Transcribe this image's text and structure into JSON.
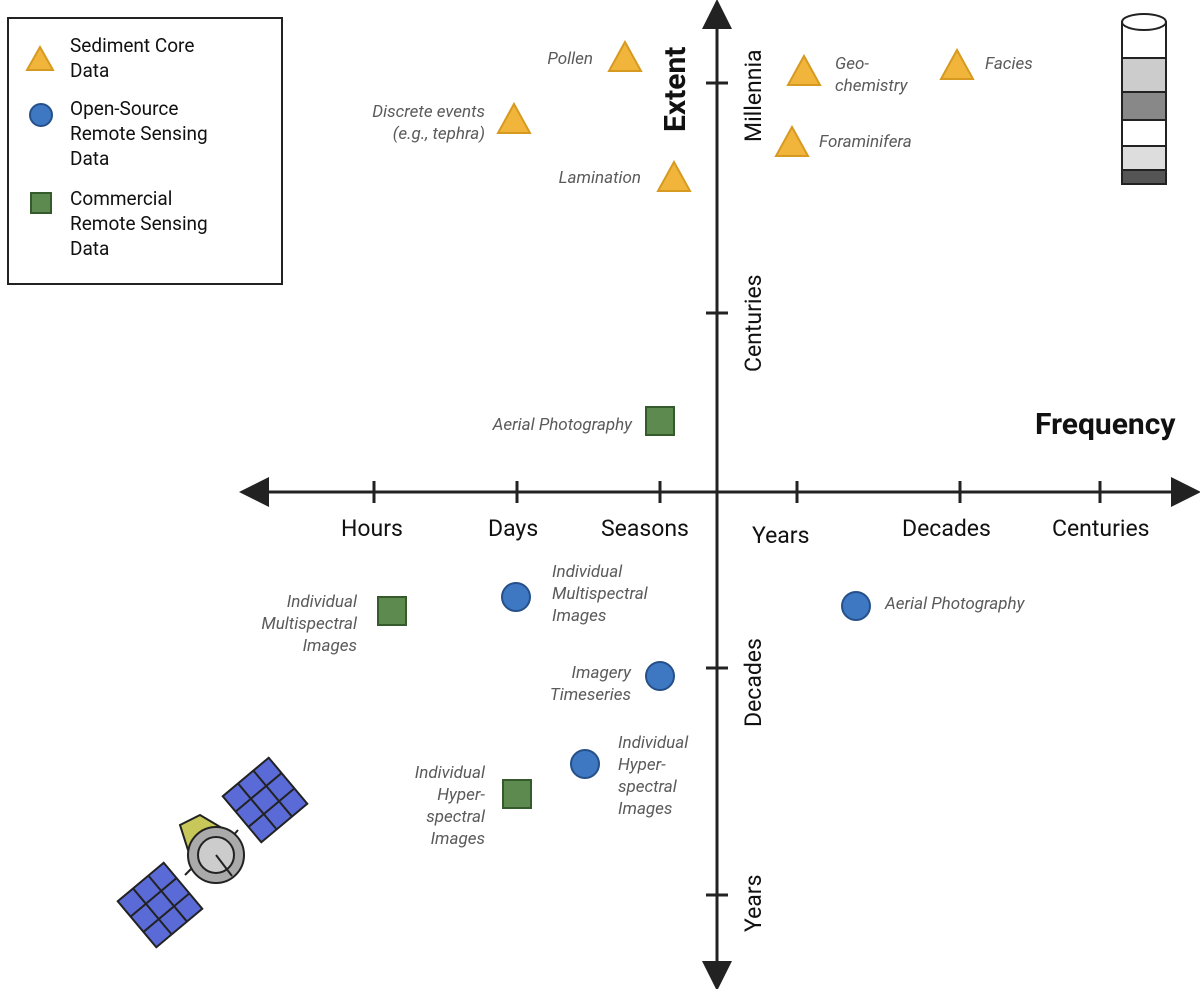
{
  "legend": {
    "items": [
      {
        "label": "Sediment Core Data"
      },
      {
        "label": "Open-Source Remote Sensing Data"
      },
      {
        "label": "Commercial Remote Sensing Data"
      }
    ]
  },
  "x_axis": {
    "title": "Frequency",
    "labels": [
      "Hours",
      "Days",
      "Seasons",
      "Years",
      "Decades",
      "Centuries"
    ]
  },
  "y_axis": {
    "title": "Extent",
    "labels": [
      "Millennia",
      "Centuries",
      "Decades",
      "Years"
    ]
  },
  "points": [
    {
      "label": "Pollen",
      "kind": "sediment"
    },
    {
      "label": "Discrete events (e.g., tephra)",
      "kind": "sediment"
    },
    {
      "label": "Lamination",
      "kind": "sediment"
    },
    {
      "label": "Geo-chemistry",
      "kind": "sediment"
    },
    {
      "label": "Facies",
      "kind": "sediment"
    },
    {
      "label": "Foraminifera",
      "kind": "sediment"
    },
    {
      "label": "Aerial Photography",
      "kind": "commercial"
    },
    {
      "label": "Individual Multispectral Images",
      "kind": "commercial"
    },
    {
      "label": "Individual Multispectral Images",
      "kind": "open"
    },
    {
      "label": "Imagery Timeseries",
      "kind": "open"
    },
    {
      "label": "Aerial Photography",
      "kind": "open"
    },
    {
      "label": "Individual Hyper-spectral Images",
      "kind": "open"
    },
    {
      "label": "Individual Hyper-spectral Images",
      "kind": "commercial"
    }
  ]
}
